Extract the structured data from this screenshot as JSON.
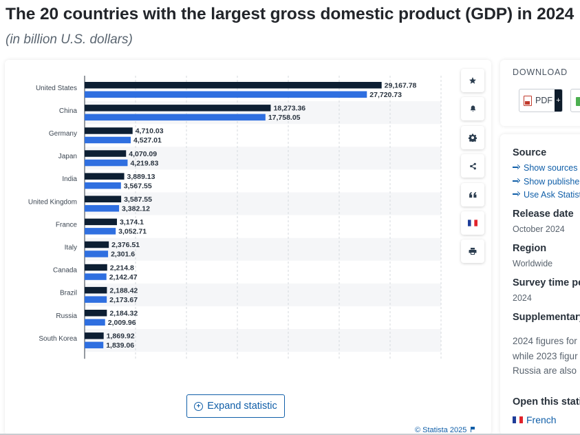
{
  "page": {
    "title": "The 20 countries with the largest gross domestic product (GDP) in 2024",
    "subtitle": "(in billion U.S. dollars)"
  },
  "chart_data": {
    "type": "bar",
    "orientation": "horizontal",
    "categories": [
      "United States",
      "China",
      "Germany",
      "Japan",
      "India",
      "United Kingdom",
      "France",
      "Italy",
      "Canada",
      "Brazil",
      "Russia",
      "South Korea"
    ],
    "series": [
      {
        "color": "#0d1f33",
        "values": [
          29167.78,
          18273.36,
          4710.03,
          4070.09,
          3889.13,
          3587.55,
          3174.1,
          2376.51,
          2214.8,
          2188.42,
          2184.32,
          1869.92
        ],
        "labels": [
          "29,167.78",
          "18,273.36",
          "4,710.03",
          "4,070.09",
          "3,889.13",
          "3,587.55",
          "3,174.1",
          "2,376.51",
          "2,214.8",
          "2,188.42",
          "2,184.32",
          "1,869.92"
        ]
      },
      {
        "color": "#2f6fe0",
        "values": [
          27720.73,
          17758.05,
          4527.01,
          4219.83,
          3567.55,
          3382.12,
          3052.71,
          2301.6,
          2142.47,
          2173.67,
          2009.96,
          1839.06
        ],
        "labels": [
          "27,720.73",
          "17,758.05",
          "4,527.01",
          "4,219.83",
          "3,567.55",
          "3,382.12",
          "3,052.71",
          "2,301.6",
          "2,142.47",
          "2,173.67",
          "2,009.96",
          "1,839.06"
        ]
      }
    ],
    "xlim": [
      0,
      35000
    ],
    "grid": true,
    "legend": "none",
    "title": "",
    "xlabel": "",
    "ylabel": ""
  },
  "chart_ui": {
    "expand_label": "Expand statistic",
    "copyright": "© Statista 2025"
  },
  "toolbar": {
    "buttons": [
      {
        "icon": "star-icon"
      },
      {
        "icon": "bell-icon"
      },
      {
        "icon": "gear-icon"
      },
      {
        "icon": "share-icon"
      },
      {
        "icon": "quote-icon"
      },
      {
        "icon": "french-flag-icon"
      },
      {
        "icon": "print-icon"
      }
    ]
  },
  "download": {
    "title": "DOWNLOAD",
    "pdf_label": "PDF",
    "plus_label": "+"
  },
  "info": {
    "source_heading": "Source",
    "links": [
      "Show sources",
      "Show publishe",
      "Use Ask Statist"
    ],
    "release_heading": "Release date",
    "release_value": "October 2024",
    "region_heading": "Region",
    "region_value": "Worldwide",
    "survey_heading": "Survey time pe",
    "survey_value": "2024",
    "supplementary_heading": "Supplementary",
    "supplementary_lines": [
      "2024 figures for",
      "while 2023 figur",
      "Russia are also"
    ],
    "open_heading": "Open this stati",
    "french_label": "French"
  }
}
